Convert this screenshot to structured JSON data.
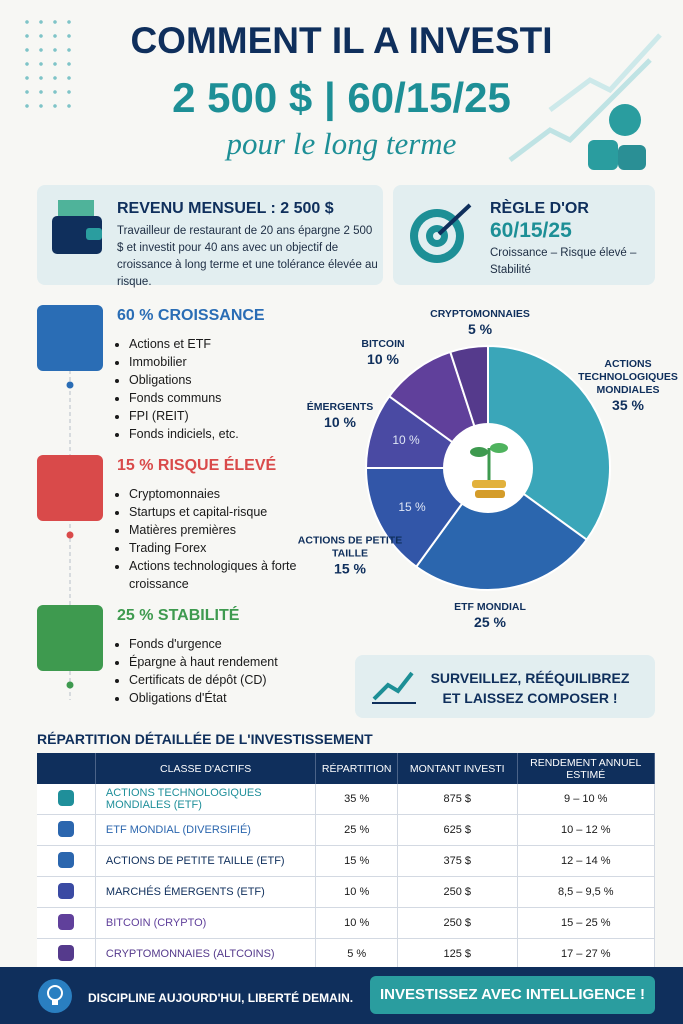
{
  "header": {
    "title": "COMMENT IL A INVESTI",
    "headline": "2 500 $ | 60/15/25",
    "tagline": "pour le long terme"
  },
  "income": {
    "title": "REVENU MENSUEL : 2 500 $",
    "text": "Travailleur de restaurant de 20 ans épargne 2 500 $ et investit pour 40 ans avec un objectif de croissance à long terme et une tolérance élevée au risque."
  },
  "rule": {
    "title": "RÈGLE D'OR",
    "ratio": "60/15/25",
    "text": "Croissance – Risque élevé – Stabilité"
  },
  "groups": [
    {
      "title": "60 % CROISSANCE",
      "items": [
        "Actions et ETF",
        "Immobilier",
        "Obligations",
        "Fonds communs",
        "FPI (REIT)",
        "Fonds indiciels, etc."
      ]
    },
    {
      "title": "15 % RISQUE ÉLEVÉ",
      "items": [
        "Cryptomonnaies",
        "Startups et capital-risque",
        "Matières premières",
        "Trading Forex",
        "Actions technologiques à forte croissance"
      ]
    },
    {
      "title": "25 % STABILITÉ",
      "items": [
        "Fonds d'urgence",
        "Épargne à haut rendement",
        "Certificats de dépôt (CD)",
        "Obligations d'État"
      ]
    }
  ],
  "chart_data": {
    "type": "pie",
    "categories": [
      "ACTIONS TECHNOLOGIQUES MONDIALES",
      "ETF MONDIAL",
      "ACTIONS DE PETITE TAILLE",
      "ÉMERGENTS",
      "BITCOIN",
      "CRYPTOMONNAIES"
    ],
    "values": [
      35,
      25,
      15,
      10,
      10,
      5
    ],
    "value_labels": [
      "35 %",
      "25 %",
      "15 %",
      "10 %",
      "10 %",
      "5 %"
    ],
    "colors": [
      "#3aa6b9",
      "#2b66ae",
      "#3256a8",
      "#4a4aa3",
      "#60409b",
      "#553a8c"
    ]
  },
  "callout": "SURVEILLEZ, RÉÉQUILIBREZ ET LAISSEZ COMPOSER !",
  "table": {
    "title": "RÉPARTITION DÉTAILLÉE DE L'INVESTISSEMENT",
    "columns": [
      "CLASSE D'ACTIFS",
      "RÉPARTITION",
      "MONTANT INVESTI",
      "RENDEMENT ANNUEL ESTIMÉ"
    ],
    "rows": [
      [
        "ACTIONS TECHNOLOGIQUES MONDIALES (ETF)",
        "35 %",
        "875 $",
        "9 – 10 %"
      ],
      [
        "ETF MONDIAL (DIVERSIFIÉ)",
        "25 %",
        "625 $",
        "10 – 12 %"
      ],
      [
        "ACTIONS DE PETITE TAILLE (ETF)",
        "15 %",
        "375 $",
        "12 – 14 %"
      ],
      [
        "MARCHÉS ÉMERGENTS (ETF)",
        "10 %",
        "250 $",
        "8,5 – 9,5 %"
      ],
      [
        "BITCOIN (CRYPTO)",
        "10 %",
        "250 $",
        "15 – 25 %"
      ],
      [
        "CRYPTOMONNAIES (ALTCOINS)",
        "5 %",
        "125 $",
        "17 – 27 %"
      ]
    ]
  },
  "footer": {
    "motto": "DISCIPLINE AUJOURD'HUI, LIBERTÉ DEMAIN.",
    "button": "INVESTISSEZ AVEC INTELLIGENCE !"
  }
}
